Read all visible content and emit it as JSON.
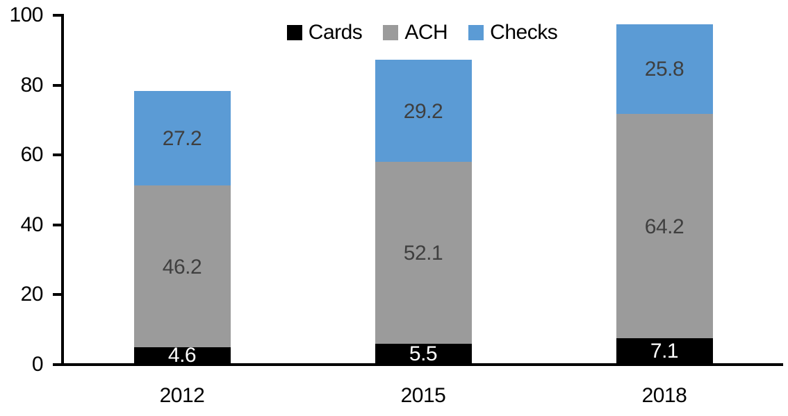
{
  "chart_data": {
    "type": "bar",
    "stacked": true,
    "title": "",
    "xlabel": "",
    "ylabel": "",
    "categories": [
      "2012",
      "2015",
      "2018"
    ],
    "series": [
      {
        "name": "Cards",
        "color": "#000000",
        "label_color": "#ffffff",
        "values": [
          4.6,
          5.5,
          7.1
        ]
      },
      {
        "name": "ACH",
        "color": "#9b9b9b",
        "label_color": "#3f3f3f",
        "values": [
          46.2,
          52.1,
          64.2
        ]
      },
      {
        "name": "Checks",
        "color": "#5b9bd5",
        "label_color": "#3f3f3f",
        "values": [
          27.2,
          29.2,
          25.8
        ]
      }
    ],
    "totals": [
      78.0,
      86.8,
      97.1
    ],
    "ylim": [
      0,
      100
    ],
    "yticks": [
      0,
      20,
      40,
      60,
      80,
      100
    ],
    "grid": false,
    "legend_position": "top"
  }
}
